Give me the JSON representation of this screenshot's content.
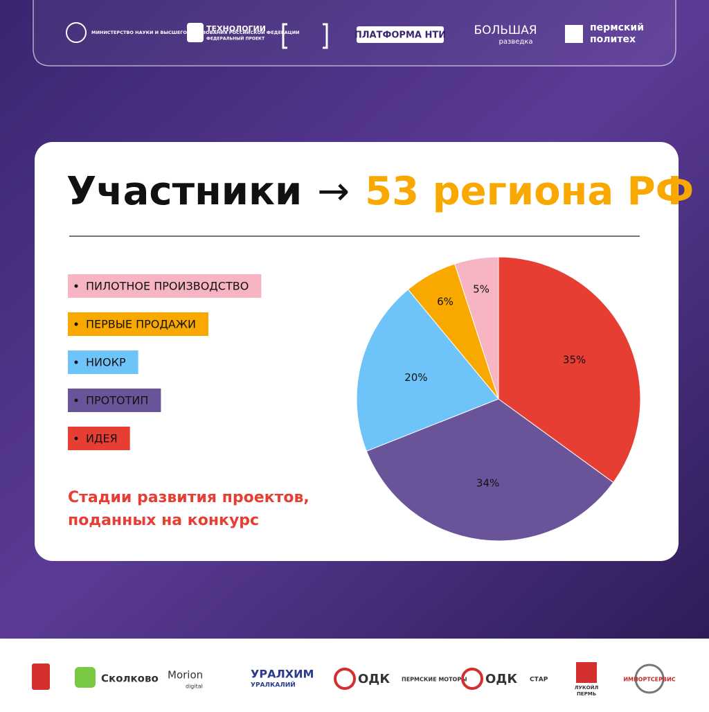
{
  "header_logos": [
    "МИНИСТЕРСТВО НАУКИ И ВЫСШЕГО ОБРАЗОВАНИЯ РОССИЙСКОЙ ФЕДЕРАЦИИ",
    "ТЕХНОЛОГИИ",
    "ФЕДЕРАЛЬНЫЙ ПРОЕКТ",
    "ПЛАТФОРМА НТИ",
    "БОЛЬШАЯ",
    "разведка",
    "пермский",
    "политех"
  ],
  "chart_data": {
    "type": "pie",
    "title": "Участники",
    "title_arrow": "→",
    "title_highlight": "53 региона РФ",
    "subtitle_lines": [
      "Стадии развития проектов,",
      "поданных на конкурс"
    ],
    "categories": [
      "ПИЛОТНОЕ ПРОИЗВОДСТВО",
      "ПЕРВЫЕ ПРОДАЖИ",
      "НИОКР",
      "ПРОТОТИП",
      "ИДЕЯ"
    ],
    "values": [
      5,
      6,
      20,
      34,
      35
    ],
    "value_labels": [
      "5%",
      "6%",
      "20%",
      "34%",
      "35%"
    ],
    "colors": [
      "#f7b4c3",
      "#f9a800",
      "#6ec3f8",
      "#6a5499",
      "#e63e33"
    ],
    "direction": "counterclockwise"
  },
  "footer_logos": [
    "Сколково",
    "Morion",
    "digital",
    "УРАЛХИМ",
    "УРАЛКАЛИЙ",
    "ОДК",
    "ПЕРМСКИЕ МОТОРЫ",
    "ОДК",
    "СТАР",
    "ЛУКОЙЛ",
    "ПЕРМЬ",
    "ИМПОРТСЕРВИС"
  ]
}
